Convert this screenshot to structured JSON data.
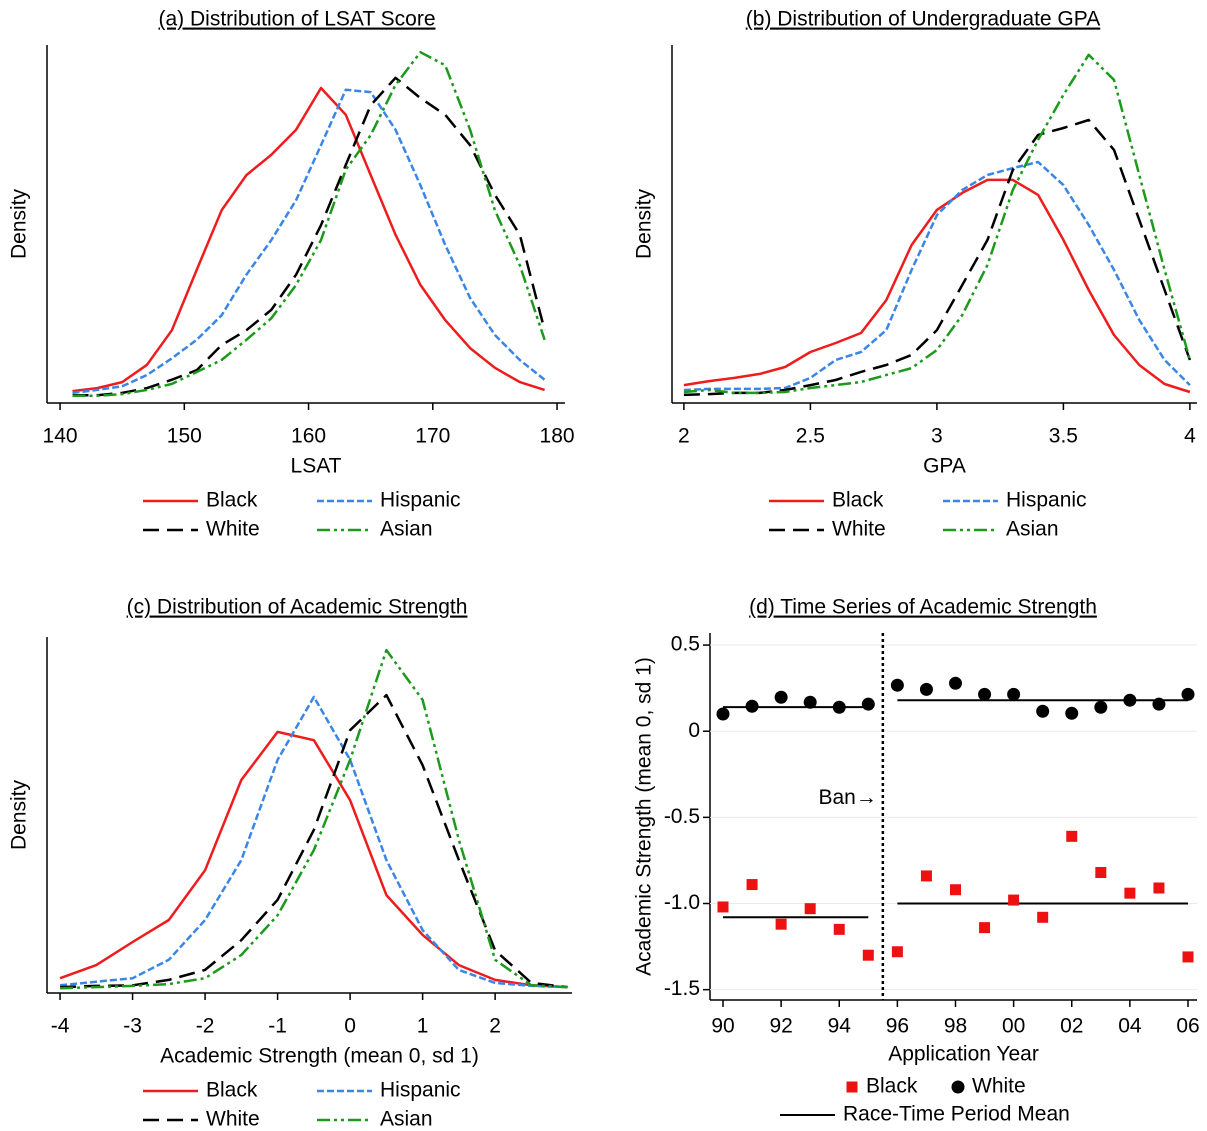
{
  "chart_data": [
    {
      "type": "line",
      "title": "(a) Distribution of LSAT Score",
      "xlabel": "LSAT",
      "ylabel": "Density",
      "x": [
        141,
        143,
        145,
        147,
        149,
        151,
        153,
        155,
        157,
        159,
        161,
        163,
        165,
        167,
        169,
        171,
        173,
        175,
        177,
        179
      ],
      "xlim": [
        138.95,
        180.64
      ],
      "xticks": [
        140,
        150,
        160,
        170,
        180
      ],
      "ylim": [
        0,
        0.06
      ],
      "series": [
        {
          "name": "Black",
          "color": "#ee1c1c",
          "line_style": "solid",
          "values": [
            0.002,
            0.0025,
            0.0035,
            0.0064,
            0.0122,
            0.0223,
            0.0323,
            0.0382,
            0.0416,
            0.0458,
            0.0528,
            0.0483,
            0.0382,
            0.0282,
            0.0198,
            0.0139,
            0.0092,
            0.0059,
            0.0035,
            0.0022
          ]
        },
        {
          "name": "Hispanic",
          "color": "#3a86e8",
          "line_style": "short-dash",
          "values": [
            0.0017,
            0.0022,
            0.0028,
            0.0047,
            0.0075,
            0.0106,
            0.0147,
            0.0215,
            0.0273,
            0.034,
            0.0432,
            0.0525,
            0.0521,
            0.0458,
            0.0365,
            0.0265,
            0.0176,
            0.0114,
            0.0072,
            0.0039
          ]
        },
        {
          "name": "White",
          "color": "#000000",
          "line_style": "long-dash",
          "values": [
            0.0013,
            0.0013,
            0.0017,
            0.0025,
            0.0039,
            0.0055,
            0.0097,
            0.0122,
            0.0156,
            0.0215,
            0.0298,
            0.0399,
            0.0499,
            0.0545,
            0.0511,
            0.0483,
            0.0432,
            0.0349,
            0.0282,
            0.0122
          ]
        },
        {
          "name": "Asian",
          "color": "#1b9a1b",
          "line_style": "dash-dot-dot",
          "values": [
            0.0012,
            0.0012,
            0.0015,
            0.0022,
            0.0032,
            0.0052,
            0.0072,
            0.0106,
            0.0142,
            0.0198,
            0.0273,
            0.0391,
            0.0449,
            0.0533,
            0.0588,
            0.0566,
            0.0458,
            0.0323,
            0.0231,
            0.0106
          ]
        }
      ]
    },
    {
      "type": "line",
      "title": "(b) Distribution of Undergraduate GPA",
      "xlabel": "GPA",
      "ylabel": "Density",
      "x": [
        2,
        2.1,
        2.2,
        2.3,
        2.4,
        2.5,
        2.6,
        2.7,
        2.8,
        2.9,
        3,
        3.1,
        3.2,
        3.3,
        3.4,
        3.5,
        3.6,
        3.7,
        3.8,
        3.9,
        4
      ],
      "xlim": [
        1.953,
        4.028
      ],
      "xticks": [
        2,
        2.5,
        3,
        3.5,
        4
      ],
      "ylim": [
        0,
        1.6
      ],
      "series": [
        {
          "name": "Black",
          "color": "#ee1c1c",
          "line_style": "solid",
          "values": [
            0.08,
            0.098,
            0.112,
            0.13,
            0.161,
            0.228,
            0.268,
            0.313,
            0.46,
            0.706,
            0.863,
            0.939,
            0.997,
            0.997,
            0.93,
            0.729,
            0.505,
            0.304,
            0.17,
            0.085,
            0.049
          ]
        },
        {
          "name": "Hispanic",
          "color": "#3a86e8",
          "line_style": "short-dash",
          "values": [
            0.058,
            0.063,
            0.063,
            0.063,
            0.067,
            0.112,
            0.192,
            0.228,
            0.326,
            0.595,
            0.84,
            0.952,
            1.019,
            1.05,
            1.077,
            0.974,
            0.796,
            0.595,
            0.371,
            0.192,
            0.08
          ]
        },
        {
          "name": "White",
          "color": "#000000",
          "line_style": "long-dash",
          "values": [
            0.036,
            0.04,
            0.045,
            0.045,
            0.058,
            0.08,
            0.103,
            0.139,
            0.17,
            0.215,
            0.326,
            0.527,
            0.729,
            1.042,
            1.198,
            1.229,
            1.265,
            1.131,
            0.818,
            0.505,
            0.192
          ]
        },
        {
          "name": "Asian",
          "color": "#1b9a1b",
          "line_style": "dash-dot-dot",
          "values": [
            0.049,
            0.058,
            0.045,
            0.045,
            0.049,
            0.067,
            0.08,
            0.094,
            0.125,
            0.156,
            0.237,
            0.393,
            0.617,
            0.952,
            1.176,
            1.377,
            1.556,
            1.444,
            1.019,
            0.595,
            0.192
          ]
        }
      ]
    },
    {
      "type": "line",
      "title": "(c) Distribution of Academic Strength",
      "xlabel": "Academic Strength (mean 0, sd 1)",
      "ylabel": "Density",
      "x": [
        -4,
        -3.5,
        -3,
        -2.5,
        -2,
        -1.5,
        -1,
        -0.5,
        0,
        0.5,
        1,
        1.5,
        2,
        2.5,
        3
      ],
      "xlim": [
        -4.18,
        3.06
      ],
      "xticks": [
        -4,
        -3,
        -2,
        -1,
        0,
        1,
        2
      ],
      "ylim": [
        0,
        0.6
      ],
      "series": [
        {
          "name": "Black",
          "color": "#ee1c1c",
          "line_style": "solid",
          "values": [
            0.025,
            0.047,
            0.086,
            0.123,
            0.207,
            0.359,
            0.44,
            0.426,
            0.325,
            0.165,
            0.098,
            0.047,
            0.022,
            0.013,
            0.01
          ]
        },
        {
          "name": "Hispanic",
          "color": "#3a86e8",
          "line_style": "short-dash",
          "values": [
            0.013,
            0.019,
            0.025,
            0.056,
            0.123,
            0.224,
            0.393,
            0.499,
            0.393,
            0.224,
            0.106,
            0.039,
            0.017,
            0.012,
            0.01
          ]
        },
        {
          "name": "White",
          "color": "#000000",
          "line_style": "long-dash",
          "values": [
            0.01,
            0.012,
            0.013,
            0.022,
            0.039,
            0.089,
            0.157,
            0.275,
            0.443,
            0.502,
            0.384,
            0.224,
            0.072,
            0.017,
            0.01
          ]
        },
        {
          "name": "Asian",
          "color": "#1b9a1b",
          "line_style": "dash-dot-dot",
          "values": [
            0.008,
            0.01,
            0.012,
            0.015,
            0.025,
            0.064,
            0.131,
            0.241,
            0.393,
            0.578,
            0.494,
            0.258,
            0.056,
            0.013,
            0.01
          ]
        }
      ]
    },
    {
      "type": "scatter",
      "title": "(d) Time Series of Academic Strength",
      "xlabel": "Application Year",
      "ylabel": "Academic Strength (mean 0, sd 1)",
      "categories": [
        "90",
        null,
        "92",
        null,
        "94",
        null,
        "96",
        null,
        "98",
        null,
        "00",
        null,
        "02",
        null,
        "04",
        null,
        "06"
      ],
      "ylim": [
        -1.56,
        0.57
      ],
      "yticks": [
        0.5,
        0,
        -0.5,
        {
          "value": -1,
          "label": "-1.0"
        },
        -1.5
      ],
      "grid": true,
      "annotation": "Ban→",
      "mean_label": "Race-Time Period Mean",
      "mean_color": "#000000",
      "series": [
        {
          "name": "Black",
          "color": "#ee1111",
          "marker": "square",
          "values": [
            -1.02,
            -0.89,
            -1.12,
            -1.03,
            -1.15,
            -1.3,
            -1.28,
            -0.84,
            -0.92,
            -1.14,
            -0.98,
            -1.08,
            -0.61,
            -0.82,
            -0.94,
            -0.91,
            -1.31
          ],
          "period_means": [
            -1.08,
            -1.0
          ]
        },
        {
          "name": "White",
          "color": "#000000",
          "marker": "circle",
          "values": [
            0.1,
            0.145,
            0.197,
            0.168,
            0.139,
            0.157,
            0.267,
            0.243,
            0.278,
            0.214,
            0.214,
            0.116,
            0.104,
            0.139,
            0.18,
            0.157,
            0.214
          ],
          "period_means": [
            0.14,
            0.18
          ]
        }
      ]
    }
  ]
}
